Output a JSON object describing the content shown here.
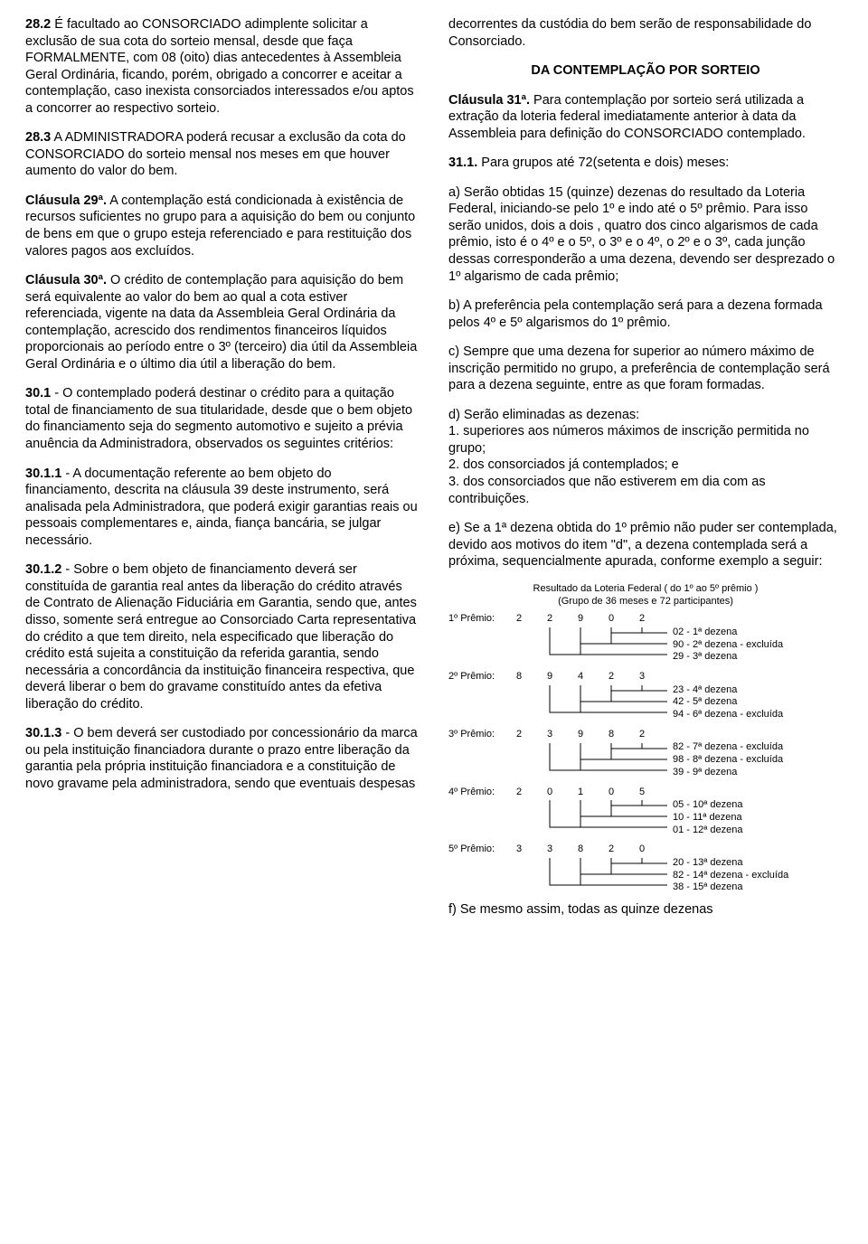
{
  "left": {
    "p28_2": {
      "lead": "28.2",
      "text": " É facultado ao CONSORCIADO adimplente solicitar a exclusão de sua cota do sorteio mensal, desde que faça FORMALMENTE, com 08 (oito) dias antecedentes à Assembleia Geral Ordinária, ficando, porém, obrigado a concorrer e aceitar a contemplação, caso inexista consorciados interessados e/ou aptos a concorrer ao respectivo sorteio."
    },
    "p28_3": {
      "lead": "28.3",
      "text": " A ADMINISTRADORA poderá recusar a exclusão da cota do CONSORCIADO do sorteio mensal nos meses em que houver aumento do valor do bem."
    },
    "c29": {
      "lead": "Cláusula 29ª.",
      "text": " A contemplação está condicionada à existência de recursos suficientes no grupo para a aquisição do bem ou conjunto de bens em que o grupo esteja referenciado e para restituição dos valores pagos aos excluídos."
    },
    "c30": {
      "lead": "Cláusula 30ª.",
      "text": " O crédito de contemplação para aquisição do bem será equivalente ao valor do bem ao qual a cota estiver referenciada, vigente na data da Assembleia Geral Ordinária da contemplação, acrescido dos rendimentos financeiros líquidos proporcionais ao período entre o 3º (terceiro) dia útil da Assembleia Geral Ordinária e o último dia útil a liberação do bem."
    },
    "p30_1": {
      "lead": "30.1",
      "text": " - O contemplado poderá destinar o crédito para a quitação total de financiamento de sua titularidade, desde que o bem objeto do financiamento seja do segmento automotivo e sujeito a prévia anuência da Administradora, observados os seguintes critérios:"
    },
    "p30_1_1": {
      "lead": "30.1.1",
      "text": " - A documentação referente ao bem objeto do financiamento, descrita na cláusula 39 deste instrumento, será analisada pela Administradora, que poderá exigir garantias reais ou pessoais complementares e, ainda, fiança bancária, se julgar necessário."
    },
    "p30_1_2": {
      "lead": "30.1.2",
      "text": " - Sobre o bem objeto de financiamento deverá ser constituída de garantia real antes da liberação do crédito através de Contrato de Alienação Fiduciária em Garantia, sendo que, antes disso, somente será entregue ao Consorciado Carta representativa do crédito a que tem direito, nela especificado que liberação do crédito está sujeita a constituição da referida garantia, sendo necessária a concordância da instituição financeira respectiva, que deverá liberar o bem do gravame constituído antes da efetiva liberação do crédito."
    },
    "p30_1_3": {
      "lead": "30.1.3",
      "text": " - O bem deverá ser custodiado por concessionário da marca ou pela instituição financiadora durante o prazo entre liberação da garantia pela própria instituição financiadora e a constituição de novo gravame pela administradora, sendo que eventuais despesas"
    }
  },
  "right": {
    "intro": "decorrentes da custódia do bem serão de responsabilidade do Consorciado.",
    "section": "DA CONTEMPLAÇÃO POR SORTEIO",
    "c31": {
      "lead": "Cláusula 31ª.",
      "text": " Para contemplação por sorteio será utilizada a extração da loteria federal imediatamente anterior à data da Assembleia para definição do CONSORCIADO contemplado."
    },
    "p31_1": {
      "lead": "31.1.",
      "text": " Para grupos até 72(setenta e dois) meses:"
    },
    "pa": "a) Serão obtidas 15 (quinze) dezenas do resultado da Loteria Federal, iniciando-se pelo 1º e indo até o 5º prêmio. Para isso serão unidos, dois a dois , quatro dos cinco algarismos de cada prêmio, isto é o 4º e o 5º, o 3º e o 4º, o 2º e o 3º, cada junção dessas corresponderão a uma dezena, devendo ser desprezado o 1º algarismo de cada prêmio;",
    "pb": "b) A preferência pela contemplação será para a dezena formada pelos 4º e 5º algarismos do 1º prêmio.",
    "pc": "c) Sempre que uma dezena for superior ao número máximo de inscrição permitido no grupo, a preferência de contemplação será para a dezena seguinte, entre as que foram formadas.",
    "pd_lead": "d) Serão eliminadas as dezenas:",
    "pd_1": "1. superiores aos números máximos de inscrição permitida no grupo;",
    "pd_2": "2. dos consorciados já contemplados; e",
    "pd_3": "3. dos consorciados que não estiverem em dia com as contribuições.",
    "pe": "e) Se a 1ª dezena obtida do 1º prêmio não puder ser contemplada, devido aos motivos do item \"d\", a dezena contemplada será a próxima, sequencialmente apurada, conforme exemplo a seguir:",
    "diagram": {
      "title1": "Resultado da Loteria Federal ( do 1º ao 5º prêmio )",
      "title2": "(Grupo de 36 meses e 72 participantes)",
      "prizes": [
        {
          "label": "1º Prêmio:",
          "digits": [
            "2",
            "2",
            "9",
            "0",
            "2"
          ],
          "lines": [
            "02 - 1ª dezena",
            "90 - 2ª dezena - excluída",
            "29 - 3ª dezena"
          ]
        },
        {
          "label": "2º Prêmio:",
          "digits": [
            "8",
            "9",
            "4",
            "2",
            "3"
          ],
          "lines": [
            "23 - 4ª dezena",
            "42 - 5ª dezena",
            "94 - 6ª dezena - excluída"
          ]
        },
        {
          "label": "3º Prêmio:",
          "digits": [
            "2",
            "3",
            "9",
            "8",
            "2"
          ],
          "lines": [
            "82 - 7ª dezena - excluída",
            "98 - 8ª dezena - excluída",
            "39 - 9ª dezena"
          ]
        },
        {
          "label": "4º Prêmio:",
          "digits": [
            "2",
            "0",
            "1",
            "0",
            "5"
          ],
          "lines": [
            "05 - 10ª dezena",
            "10 - 11ª dezena",
            "01 - 12ª dezena"
          ]
        },
        {
          "label": "5º Prêmio:",
          "digits": [
            "3",
            "3",
            "8",
            "2",
            "0"
          ],
          "lines": [
            "20 - 13ª dezena",
            "82 - 14ª dezena - excluída",
            "38 - 15ª dezena"
          ]
        }
      ]
    },
    "pf": "f) Se mesmo assim, todas as quinze dezenas"
  }
}
